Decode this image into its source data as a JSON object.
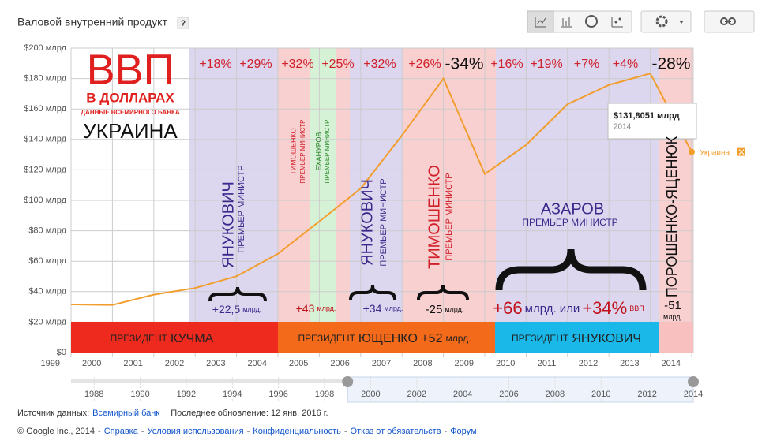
{
  "header": {
    "title": "Валовой внутренний продукт",
    "help": "?"
  },
  "chart_data": {
    "type": "line",
    "x": [
      1999,
      2000,
      2001,
      2002,
      2003,
      2004,
      2005,
      2006,
      2007,
      2008,
      2009,
      2010,
      2011,
      2012,
      2013,
      2014
    ],
    "series": [
      {
        "name": "Украина",
        "color": "#f29e2e",
        "values": [
          31.58,
          31.26,
          38.01,
          42.39,
          50.13,
          64.88,
          86.14,
          107.75,
          142.72,
          179.99,
          117.23,
          136.42,
          163.16,
          175.78,
          183.31,
          131.8051
        ],
        "value_labels": [
          null,
          null,
          null,
          null,
          null,
          null,
          null,
          null,
          null,
          null,
          null,
          null,
          null,
          null,
          null,
          "$131,8051 млрд"
        ]
      }
    ],
    "xlim": [
      1999,
      2014
    ],
    "ylim": [
      0,
      200
    ],
    "xticks": [
      1999,
      2000,
      2001,
      2002,
      2003,
      2004,
      2005,
      2006,
      2007,
      2008,
      2009,
      2010,
      2011,
      2012,
      2013,
      2014
    ],
    "yticks": [
      {
        "value": 0,
        "label": "$0"
      },
      {
        "value": 20,
        "label": "$20 млрд"
      },
      {
        "value": 40,
        "label": "$40 млрд"
      },
      {
        "value": 60,
        "label": "$60 млрд"
      },
      {
        "value": 80,
        "label": "$80 млрд"
      },
      {
        "value": 100,
        "label": "$100 млрд"
      },
      {
        "value": 120,
        "label": "$120 млрд"
      },
      {
        "value": 140,
        "label": "$140 млрд"
      },
      {
        "value": 160,
        "label": "$160 млрд"
      },
      {
        "value": 180,
        "label": "$180 млрд"
      },
      {
        "value": 200,
        "label": "$200 млрд"
      }
    ],
    "grid": true,
    "overlay": {
      "logo": [
        "ВВП",
        "В ДОЛЛАРАХ",
        "ДАННЫЕ ВСЕМИРНОГО БАНКА",
        "УКРАИНА"
      ],
      "growth": [
        "+18%",
        "+29%",
        "+32%",
        "+25%",
        "+32%",
        "+26%",
        "-34%",
        "+16%",
        "+19%",
        "+7%",
        "+4%",
        "-28%"
      ],
      "premiers": [
        [
          "ЯНУКОВИЧ",
          "ПРЕМЬЕР МИНИСТР"
        ],
        [
          "ТИМОШЕНКО",
          "ПРЕМЬЕР МИНИСТР"
        ],
        [
          "ЕХАНУРОВ",
          "ПРЕМЬЕР МИНИСТР"
        ],
        [
          "ЯНУКОВИЧ",
          "ПРЕМЬЕР МИНИСТР"
        ],
        [
          "ТИМОШЕНКО",
          "ПРЕМЬЕР МИНИСТР"
        ],
        [
          "АЗАРОВ",
          "ПРЕМЬЕР МИНИСТР"
        ],
        [
          "ПОРОШЕНКО-ЯЦЕНЮК"
        ]
      ],
      "changes": [
        [
          "+22,5",
          "млрд."
        ],
        [
          "+43",
          "млрд."
        ],
        [
          "+34",
          "млрд."
        ],
        [
          "-25",
          "млрд."
        ],
        [
          "+66",
          "млрд. или",
          "+34%",
          "ВВП"
        ],
        [
          "-51",
          "млрд."
        ]
      ],
      "presidents": [
        [
          "ПРЕЗИДЕНТ",
          "КУЧМА"
        ],
        [
          "ПРЕЗИДЕНТ",
          "ЮЩЕНКО +52",
          "млрд."
        ],
        [
          "ПРЕЗИДЕНТ",
          "ЯНУКОВИЧ"
        ]
      ]
    }
  },
  "navigator": {
    "xlim": [
      1987,
      2014
    ],
    "xticks": [
      1988,
      1990,
      1992,
      1994,
      1996,
      1998,
      2000,
      2002,
      2004,
      2006,
      2008,
      2010,
      2012,
      2014
    ],
    "selected": [
      1999,
      2014
    ]
  },
  "footer": {
    "source_label": "Источник данных:",
    "source": "Всемирный банк",
    "updated": "Последнее обновление: 12 янв. 2016 г.",
    "links": [
      "© Google Inc., 2014",
      "Справка",
      "Условия использования",
      "Конфиденциальность",
      "Отказ от обязательств",
      "Форум"
    ],
    "separator": "-"
  }
}
